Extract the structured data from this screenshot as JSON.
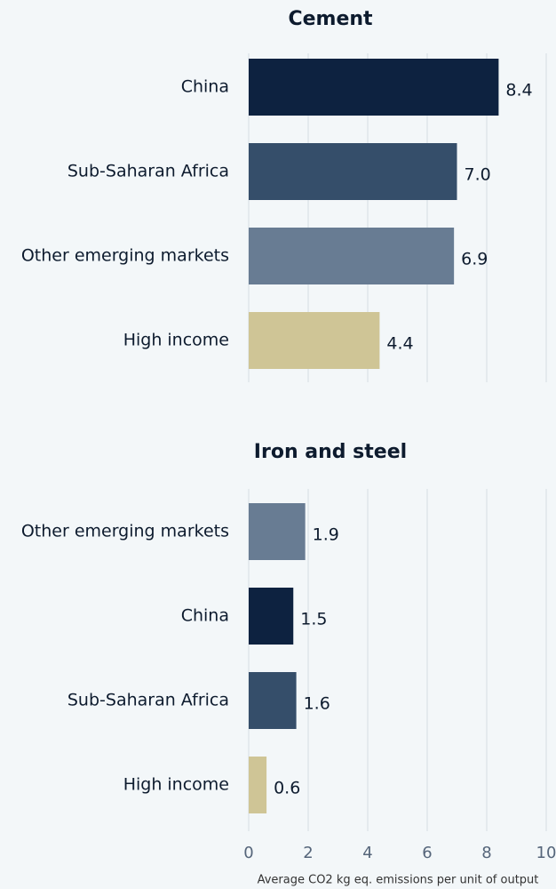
{
  "chart_data": [
    {
      "type": "bar",
      "title": "Cement",
      "categories": [
        "China",
        "Sub-Saharan Africa",
        "Other emerging markets",
        "High income"
      ],
      "values": [
        8.4,
        7.0,
        6.9,
        4.4
      ],
      "value_labels": [
        "8.4",
        "7.0",
        "6.9",
        "4.4"
      ],
      "colors": [
        "#0d2240",
        "#354e6a",
        "#687c93",
        "#cfc596"
      ],
      "xlim": [
        0,
        10
      ],
      "xticks": [
        0,
        2,
        4,
        6,
        8,
        10
      ],
      "grid": true
    },
    {
      "type": "bar",
      "title": "Iron and steel",
      "categories": [
        "Other emerging markets",
        "China",
        "Sub-Saharan Africa",
        "High income"
      ],
      "values": [
        1.9,
        1.5,
        1.6,
        0.6
      ],
      "value_labels": [
        "1.9",
        "1.5",
        "1.6",
        "0.6"
      ],
      "colors": [
        "#687c93",
        "#0d2240",
        "#354e6a",
        "#cfc596"
      ],
      "xlim": [
        0,
        10
      ],
      "xticks": [
        0,
        2,
        4,
        6,
        8,
        10
      ],
      "grid": true,
      "x_label": "Average CO2 kg eq. emissions per unit of output"
    }
  ]
}
